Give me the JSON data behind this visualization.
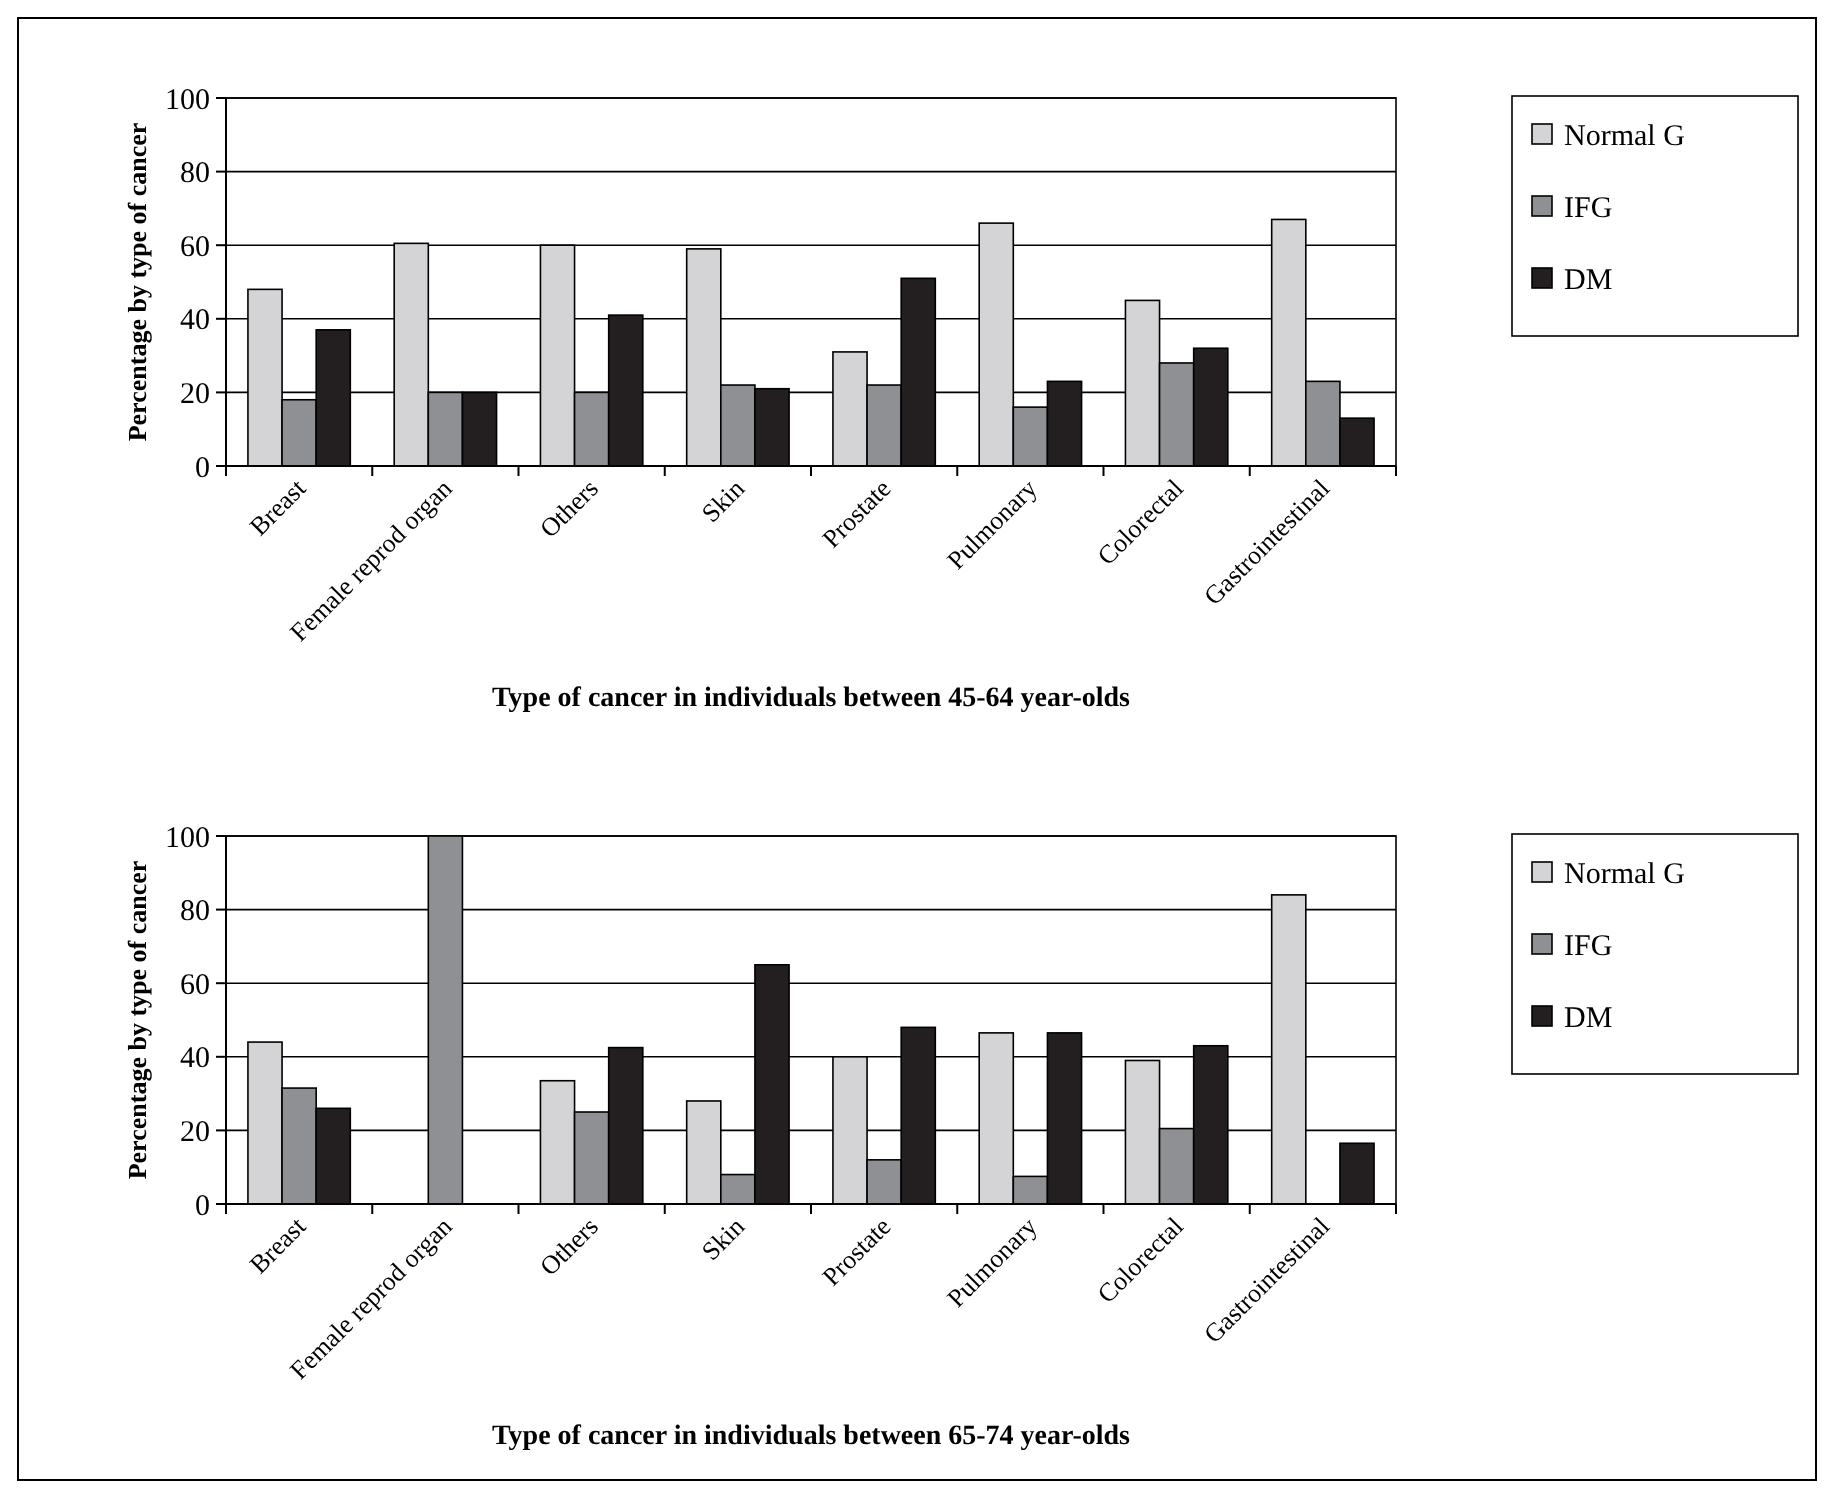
{
  "chart_data": [
    {
      "type": "bar",
      "xlabel": "Type of cancer in individuals between 45-64 year-olds",
      "ylabel": "Percentage by type of cancer",
      "categories": [
        "Breast",
        "Female reprod organ",
        "Others",
        "Skin",
        "Prostate",
        "Pulmonary",
        "Colorectal",
        "Gastrointestinal"
      ],
      "series": [
        {
          "name": "Normal G",
          "color": "#d4d4d6",
          "values": [
            48,
            60.5,
            60,
            59,
            31,
            66,
            45,
            67
          ]
        },
        {
          "name": "IFG",
          "color": "#8f9094",
          "values": [
            18,
            20,
            20,
            22,
            22,
            16,
            28,
            23
          ]
        },
        {
          "name": "DM",
          "color": "#231f20",
          "values": [
            37,
            20,
            41,
            21,
            51,
            23,
            32,
            13
          ]
        }
      ],
      "ylim": [
        0,
        100
      ],
      "yticks": [
        0,
        20,
        40,
        60,
        80,
        100
      ],
      "grid": "y",
      "legend": "right"
    },
    {
      "type": "bar",
      "xlabel": "Type of cancer in individuals between 65-74 year-olds",
      "ylabel": "Percentage by type of cancer",
      "categories": [
        "Breast",
        "Female reprod organ",
        "Others",
        "Skin",
        "Prostate",
        "Pulmonary",
        "Colorectal",
        "Gastrointestinal"
      ],
      "series": [
        {
          "name": "Normal G",
          "color": "#d4d4d6",
          "values": [
            44,
            0,
            33.5,
            28,
            40,
            46.5,
            39,
            84
          ]
        },
        {
          "name": "IFG",
          "color": "#8f9094",
          "values": [
            31.5,
            100,
            25,
            8,
            12,
            7.5,
            20.5,
            0
          ]
        },
        {
          "name": "DM",
          "color": "#231f20",
          "values": [
            26,
            0,
            42.5,
            65,
            48,
            46.5,
            43,
            16.5
          ]
        }
      ],
      "ylim": [
        0,
        100
      ],
      "yticks": [
        0,
        20,
        40,
        60,
        80,
        100
      ],
      "grid": "y",
      "legend": "right"
    }
  ]
}
